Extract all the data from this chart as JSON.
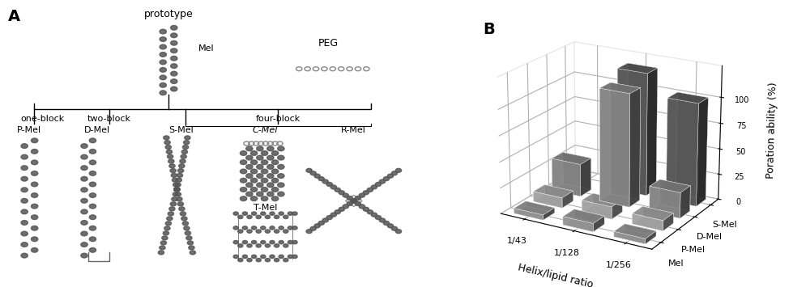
{
  "panel_b": {
    "title": "B",
    "ylabel": "Poration ability (%)",
    "xlabel": "Helix/lipid ratio",
    "x_labels": [
      "1/43",
      "1/128",
      "1/256"
    ],
    "series": {
      "Mel": [
        5,
        8,
        5
      ],
      "P-Mel": [
        10,
        12,
        10
      ],
      "D-Mel": [
        32,
        110,
        25
      ],
      "S-Mel": [
        0,
        120,
        100
      ]
    },
    "series_order": [
      "Mel",
      "P-Mel",
      "D-Mel",
      "S-Mel"
    ],
    "colors": {
      "Mel": "#aaaaaa",
      "P-Mel": "#bbbbbb",
      "D-Mel": "#999999",
      "S-Mel": "#666666"
    },
    "ylim": [
      0,
      130
    ],
    "yticks": [
      0,
      25,
      50,
      75,
      100
    ],
    "legend_labels": [
      "S-Mel",
      "D-Mel",
      "P-Mel",
      "Mel"
    ]
  },
  "panel_a": {
    "title": "A",
    "label_prototype": "prototype",
    "label_mel": "Mel",
    "label_peg": "PEG",
    "label_one_block": "one-block",
    "label_two_block": "two-block",
    "label_four_block": "four-block",
    "label_p_mel": "P-Mel",
    "label_d_mel": "D-Mel",
    "label_s_mel": "S-Mel",
    "label_c_mel": "C-Mel",
    "label_r_mel": "R-Mel",
    "label_t_mel": "T-Mel"
  }
}
